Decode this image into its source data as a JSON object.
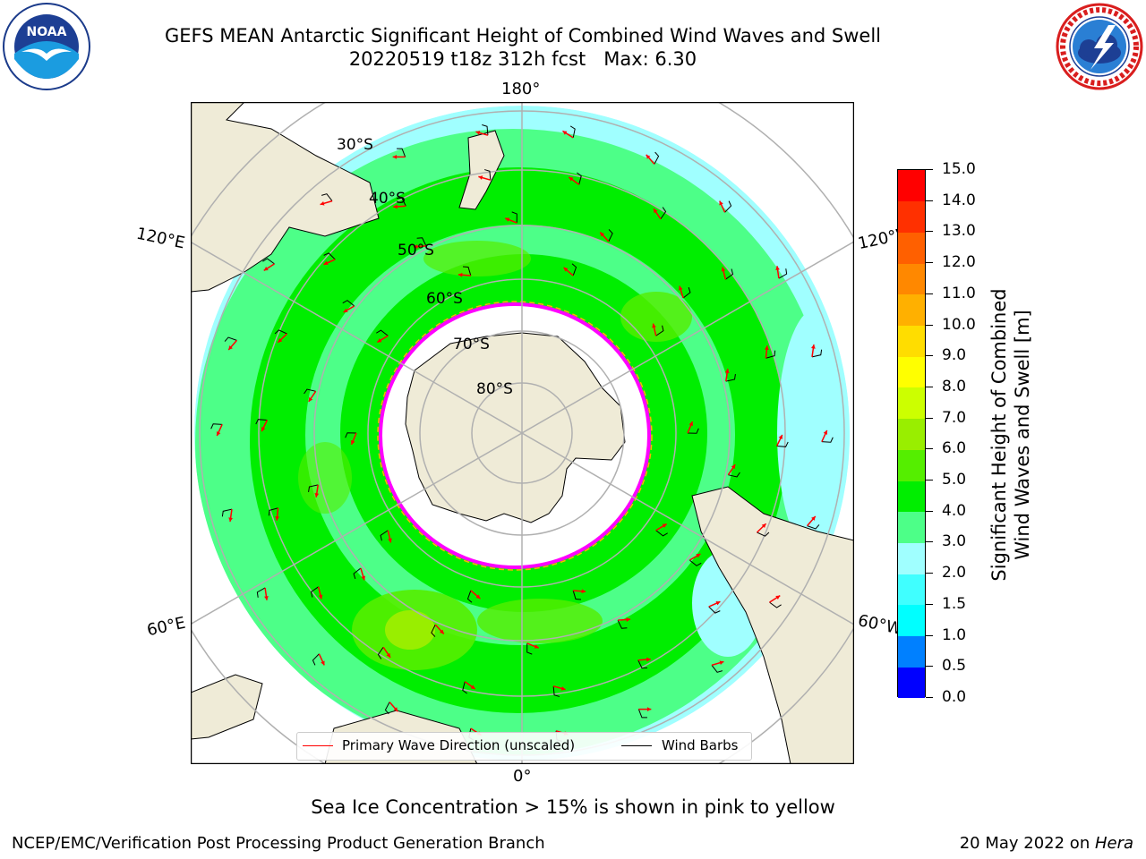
{
  "header": {
    "title_line1": "GEFS MEAN Antarctic Significant Height of Combined Wind Waves and Swell",
    "title_line2": "20220519 t18z 312h fcst   Max: 6.30"
  },
  "logos": {
    "left": {
      "name": "noaa-logo",
      "text": "NOAA",
      "ring_text": "NATIONAL OCEANIC AND ATMOSPHERIC ADMINISTRATION · U.S. DEPARTMENT OF COMMERCE"
    },
    "right": {
      "name": "nws-logo",
      "ring_text": "NATIONAL WEATHER SERVICE"
    }
  },
  "map": {
    "projection": "south-polar-stereographic",
    "lon_labels": {
      "top": "180°",
      "bottom": "0°",
      "upper_left": "120°E",
      "upper_right": "120°W",
      "lower_left": "60°E",
      "lower_right": "60°W"
    },
    "lat_labels": [
      "30°S",
      "40°S",
      "50°S",
      "60°S",
      "70°S",
      "80°S"
    ],
    "colors": {
      "land": "#efebd7",
      "ice": "#ffffff",
      "ice_edge": "#ff00ff",
      "grid": "#b0b0b0",
      "wave_arrow": "#ff0000",
      "wind_barb": "#000000"
    }
  },
  "colorbar": {
    "label_line1": "Significant Height of Combined",
    "label_line2": "Wind Waves and Swell [m]",
    "ticks": [
      "0.0",
      "0.5",
      "1.0",
      "1.5",
      "2.0",
      "3.0",
      "4.0",
      "5.0",
      "6.0",
      "7.0",
      "8.0",
      "9.0",
      "10.0",
      "11.0",
      "12.0",
      "13.0",
      "14.0",
      "15.0"
    ],
    "colors": [
      "#0000ff",
      "#0080ff",
      "#00ffff",
      "#40ffff",
      "#a0ffff",
      "#4dff88",
      "#00ee00",
      "#55ee00",
      "#99ee00",
      "#ccff00",
      "#ffff00",
      "#ffdd00",
      "#ffb000",
      "#ff8800",
      "#ff6000",
      "#ff3000",
      "#ff0000"
    ]
  },
  "legend": {
    "primary_wave": "Primary Wave Direction (unscaled)",
    "wind_barbs": "Wind Barbs"
  },
  "subtitle": "Sea Ice Concentration > 15% is shown in pink to yellow",
  "footer": {
    "left": "NCEP/EMC/Verification Post Processing Product Generation Branch",
    "right_prefix": "20 May 2022 on ",
    "right_host": "Hera"
  }
}
